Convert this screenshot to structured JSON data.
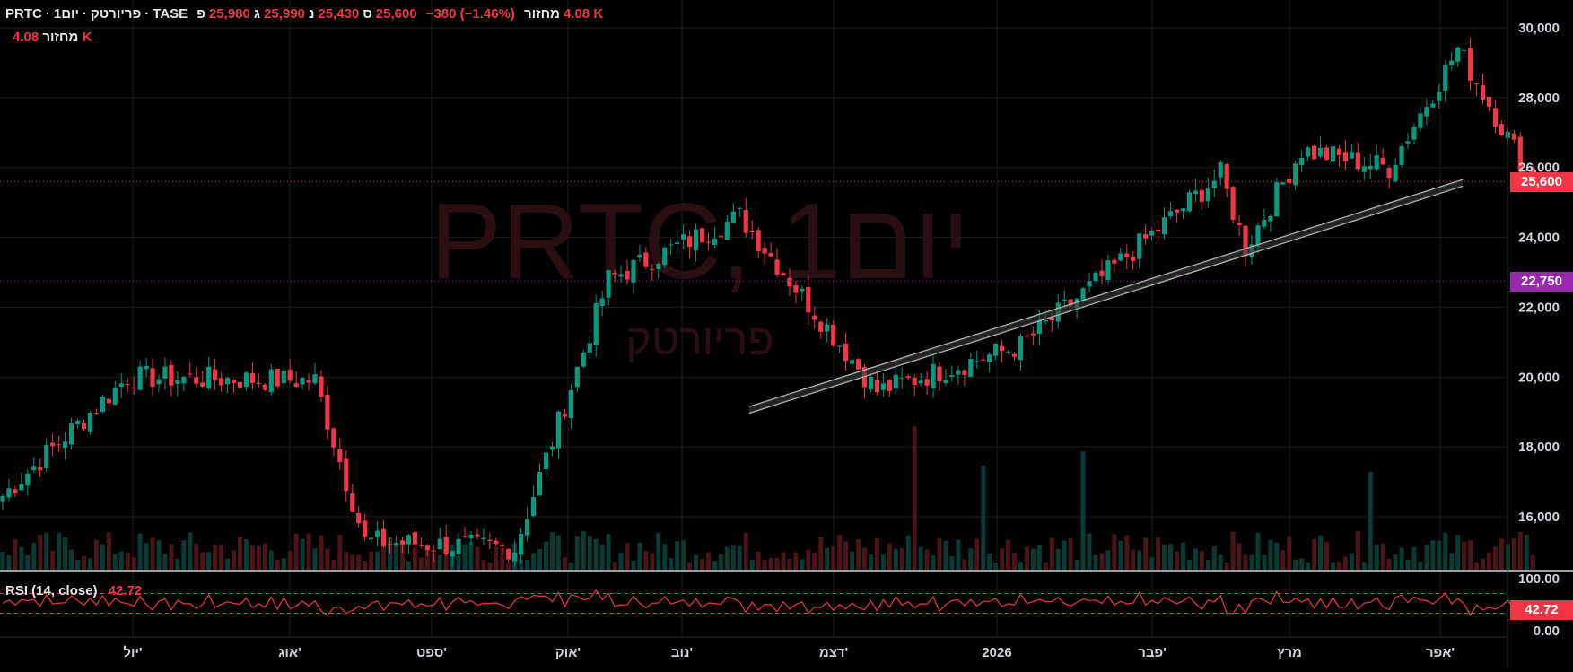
{
  "header": {
    "symbol": "PRTC",
    "separator1": "·",
    "interval": "1יום",
    "separator2": "·",
    "name": "פריורטק",
    "separator3": "·",
    "exchange": "TASE",
    "open_label": "פ",
    "open_value": "25,980",
    "high_label": "ג",
    "high_value": "25,990",
    "low_label": "נ",
    "low_value": "25,430",
    "close_label": "ס",
    "close_value": "25,600",
    "change": "−380 (−1.46%)",
    "volume_label": "מחזור",
    "volume_value": "4.08 K"
  },
  "volume_legend": {
    "label": "מחזור",
    "value": "4.08 K"
  },
  "watermark": {
    "title": "PRTC, 1יום",
    "subtitle": "פריורטק"
  },
  "price_boxes": {
    "last": "25,600",
    "line": "22,750"
  },
  "rsi": {
    "label": "RSI (14, close)",
    "value": "42.72",
    "axis_top": "100.00",
    "axis_bottom": "0.00"
  },
  "colors": {
    "up": "#089981",
    "down": "#f23645",
    "line_box": "#9c27b0",
    "background": "#000000",
    "rsi_line": "#f23645"
  },
  "chart_data": {
    "type": "candlestick",
    "y_axis": {
      "ticks": [
        "30,000",
        "28,000",
        "26,000",
        "24,000",
        "22,000",
        "20,000",
        "18,000",
        "16,000"
      ],
      "range": [
        14700,
        30600
      ]
    },
    "x_axis": {
      "ticks": [
        "יול'",
        "אוג'",
        "ספט'",
        "אוק'",
        "נוב'",
        "דצמ'",
        "2026",
        "פבר'",
        "מרץ",
        "אפר'"
      ]
    },
    "horizontal_lines": [
      25600,
      22750
    ],
    "trendline": {
      "start": {
        "index": 105,
        "value": 19150
      },
      "end": {
        "index": 243,
        "value": 25650
      }
    },
    "key_points": [
      {
        "index": 0,
        "close": 16600
      },
      {
        "index": 20,
        "close": 20000
      },
      {
        "index": 50,
        "close": 19900
      },
      {
        "index": 58,
        "close": 15300
      },
      {
        "index": 82,
        "close": 15100
      },
      {
        "index": 97,
        "close": 22800
      },
      {
        "index": 118,
        "close": 24600
      },
      {
        "index": 140,
        "close": 19600
      },
      {
        "index": 163,
        "close": 20900
      },
      {
        "index": 177,
        "close": 23000
      },
      {
        "index": 195,
        "close": 25800
      },
      {
        "index": 199,
        "close": 23700
      },
      {
        "index": 208,
        "close": 26500
      },
      {
        "index": 222,
        "close": 26000
      },
      {
        "index": 233,
        "close": 29400
      },
      {
        "index": 245,
        "close": 25600
      }
    ],
    "last_candle": {
      "open": 25980,
      "high": 25990,
      "low": 25430,
      "close": 25600,
      "volume": "4.08 K"
    },
    "rsi_last": 42.72
  }
}
